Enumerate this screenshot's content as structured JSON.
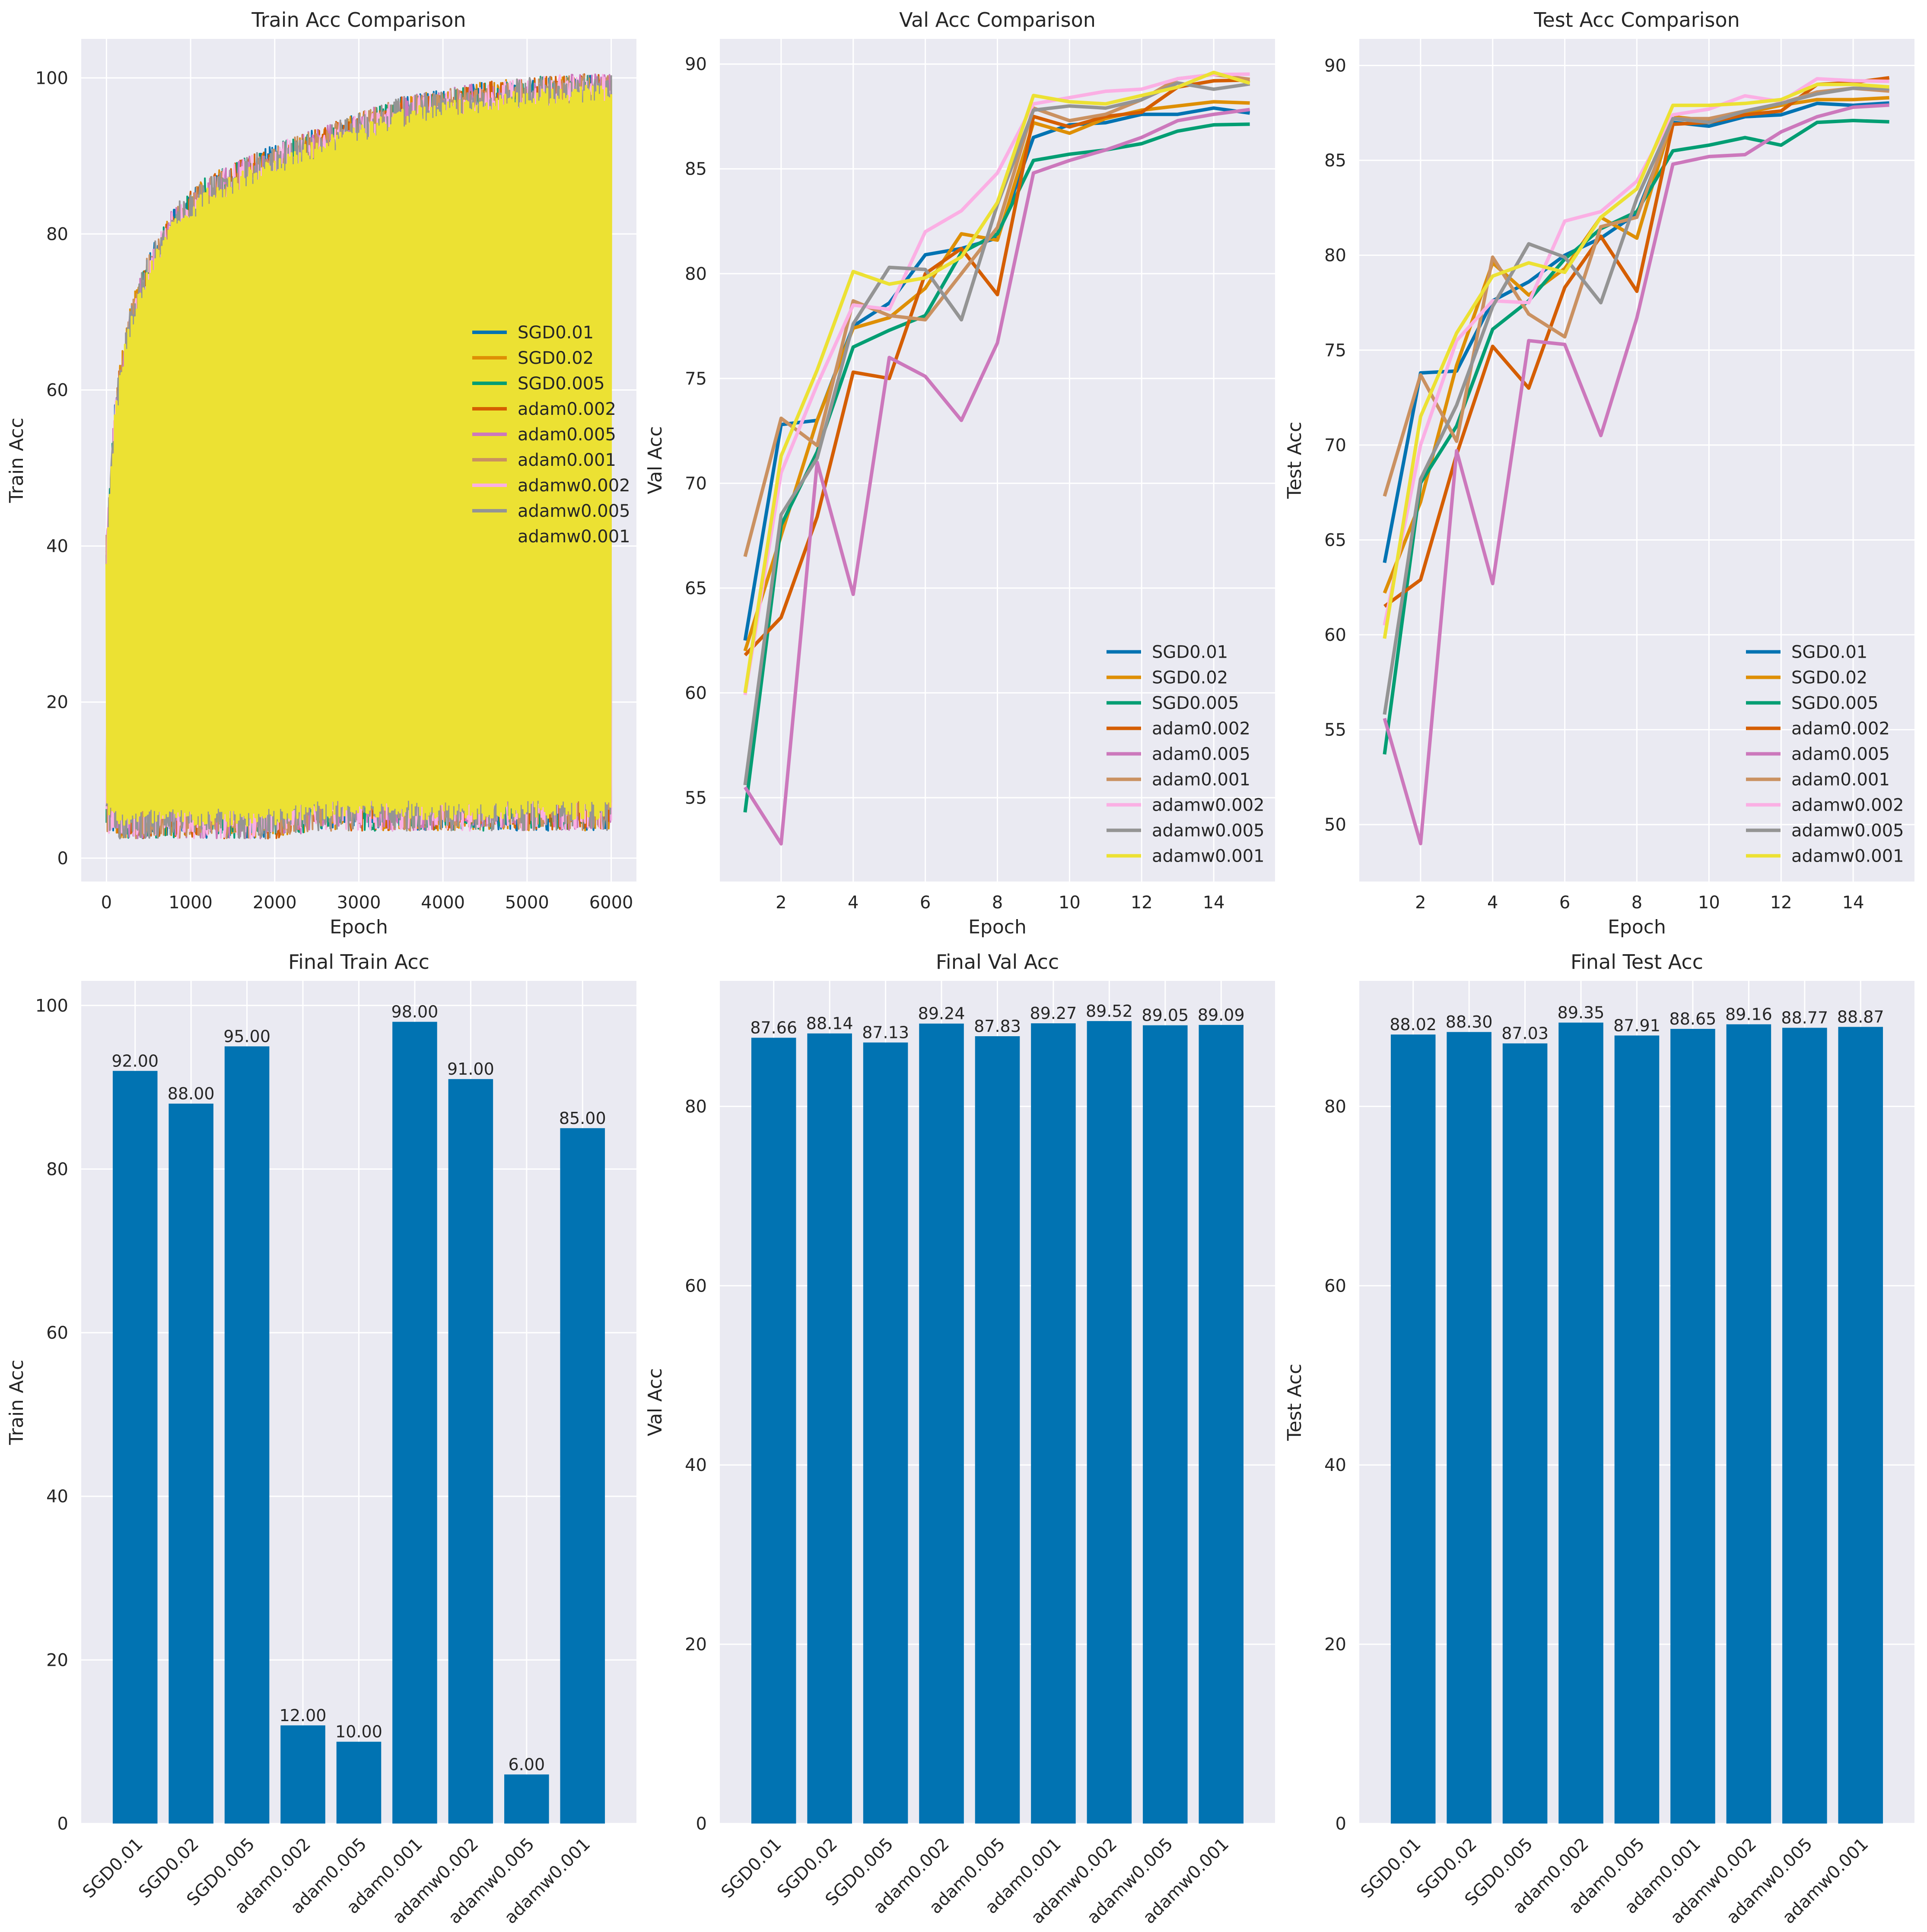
{
  "colors": {
    "panel_bg": "#EAEAF2",
    "grid": "#FFFFFF",
    "bar": "#0173B2",
    "text": "#262626",
    "series": {
      "SGD0.01": "#0173B2",
      "SGD0.02": "#DE8F05",
      "SGD0.005": "#029E73",
      "adam0.002": "#D55E00",
      "adam0.005": "#CC78BC",
      "adam0.001": "#CA9161",
      "adamw0.002": "#FBAFE4",
      "adamw0.005": "#949494",
      "adamw0.001": "#ECE133"
    }
  },
  "series_names": [
    "SGD0.01",
    "SGD0.02",
    "SGD0.005",
    "adam0.002",
    "adam0.005",
    "adam0.001",
    "adamw0.002",
    "adamw0.005",
    "adamw0.001"
  ],
  "chart_data": [
    {
      "type": "line",
      "title": "Train Acc Comparison",
      "xlabel": "Epoch",
      "ylabel": "Train Acc",
      "xlim": [
        -300,
        6300
      ],
      "ylim": [
        -3,
        105
      ],
      "xticks": [
        0,
        1000,
        2000,
        3000,
        4000,
        5000,
        6000
      ],
      "yticks": [
        0,
        20,
        40,
        60,
        80,
        100
      ],
      "grid": true,
      "legend": "center-right",
      "note_render": "per-batch accuracy; series overlap densely between the lower and upper envelopes",
      "envelope": {
        "x": [
          0,
          100,
          200,
          300,
          500,
          800,
          1200,
          1600,
          2000,
          2500,
          3000,
          3500,
          4000,
          4500,
          5000,
          5500,
          6000
        ],
        "upper": [
          40,
          57,
          65,
          70,
          76,
          82,
          86,
          88,
          90,
          92,
          94,
          96,
          97,
          98,
          98.5,
          99,
          99
        ],
        "lower": [
          5,
          4,
          4,
          4,
          4,
          4,
          4,
          4,
          4,
          5,
          5,
          5,
          5,
          5,
          5,
          5,
          5
        ]
      },
      "series": [
        {
          "name": "SGD0.01",
          "final": 92
        },
        {
          "name": "SGD0.02",
          "final": 88
        },
        {
          "name": "SGD0.005",
          "final": 95
        },
        {
          "name": "adam0.002",
          "final": 12
        },
        {
          "name": "adam0.005",
          "final": 10
        },
        {
          "name": "adam0.001",
          "final": 98
        },
        {
          "name": "adamw0.002",
          "final": 91
        },
        {
          "name": "adamw0.005",
          "final": 6
        },
        {
          "name": "adamw0.001",
          "final": 85
        }
      ]
    },
    {
      "type": "line",
      "title": "Val Acc Comparison",
      "xlabel": "Epoch",
      "ylabel": "Val Acc",
      "xlim": [
        0.3,
        15.7
      ],
      "ylim": [
        51,
        91.2
      ],
      "xticks": [
        2,
        4,
        6,
        8,
        10,
        12,
        14
      ],
      "yticks": [
        55,
        60,
        65,
        70,
        75,
        80,
        85,
        90
      ],
      "grid": true,
      "legend": "lower-right",
      "x": [
        1,
        2,
        3,
        4,
        5,
        6,
        7,
        8,
        9,
        10,
        11,
        12,
        13,
        14,
        15
      ],
      "series": [
        {
          "name": "SGD0.01",
          "values": [
            62.5,
            72.8,
            73.0,
            77.5,
            78.6,
            80.9,
            81.2,
            81.7,
            86.5,
            87.1,
            87.2,
            87.6,
            87.6,
            87.9,
            87.66
          ]
        },
        {
          "name": "SGD0.02",
          "values": [
            62.0,
            67.5,
            73.0,
            77.4,
            77.9,
            79.3,
            81.9,
            81.6,
            87.2,
            86.7,
            87.4,
            87.8,
            88.0,
            88.2,
            88.14
          ]
        },
        {
          "name": "SGD0.005",
          "values": [
            54.3,
            68.0,
            71.5,
            76.5,
            77.3,
            78.0,
            81.0,
            81.9,
            85.4,
            85.7,
            85.9,
            86.2,
            86.8,
            87.1,
            87.13
          ]
        },
        {
          "name": "adam0.002",
          "values": [
            61.8,
            63.6,
            68.4,
            75.3,
            75.0,
            80.0,
            81.2,
            79.0,
            87.5,
            87.0,
            87.5,
            87.7,
            88.9,
            89.2,
            89.24
          ]
        },
        {
          "name": "adam0.005",
          "values": [
            55.5,
            52.8,
            71.0,
            64.7,
            76.0,
            75.1,
            73.0,
            76.7,
            84.8,
            85.4,
            85.9,
            86.5,
            87.3,
            87.6,
            87.83
          ]
        },
        {
          "name": "adam0.001",
          "values": [
            66.5,
            73.1,
            71.8,
            78.7,
            78.0,
            77.8,
            80.0,
            82.2,
            87.9,
            87.3,
            87.6,
            88.3,
            89.3,
            89.5,
            89.27
          ]
        },
        {
          "name": "adamw0.002",
          "values": [
            59.9,
            70.5,
            74.7,
            78.5,
            78.3,
            82.0,
            83.0,
            84.8,
            88.1,
            88.4,
            88.7,
            88.8,
            89.3,
            89.5,
            89.52
          ]
        },
        {
          "name": "adamw0.005",
          "values": [
            55.6,
            68.5,
            71.2,
            77.6,
            80.3,
            80.2,
            77.8,
            83.3,
            87.8,
            88.0,
            87.9,
            88.3,
            89.1,
            88.8,
            89.05
          ]
        },
        {
          "name": "adamw0.001",
          "values": [
            60.0,
            71.3,
            75.4,
            80.1,
            79.5,
            79.8,
            80.8,
            83.4,
            88.5,
            88.2,
            88.1,
            88.5,
            88.9,
            89.6,
            89.09
          ]
        }
      ]
    },
    {
      "type": "line",
      "title": "Test Acc Comparison",
      "xlabel": "Epoch",
      "ylabel": "Test Acc",
      "xlim": [
        0.3,
        15.7
      ],
      "ylim": [
        47,
        91.4
      ],
      "xticks": [
        2,
        4,
        6,
        8,
        10,
        12,
        14
      ],
      "yticks": [
        50,
        55,
        60,
        65,
        70,
        75,
        80,
        85,
        90
      ],
      "grid": true,
      "legend": "lower-right",
      "x": [
        1,
        2,
        3,
        4,
        5,
        6,
        7,
        8,
        9,
        10,
        11,
        12,
        13,
        14,
        15
      ],
      "series": [
        {
          "name": "SGD0.01",
          "values": [
            63.8,
            73.8,
            73.9,
            77.6,
            78.6,
            80.0,
            80.9,
            82.2,
            87.0,
            86.8,
            87.3,
            87.4,
            88.0,
            87.9,
            88.02
          ]
        },
        {
          "name": "SGD0.02",
          "values": [
            62.2,
            67.0,
            74.2,
            79.6,
            77.9,
            79.3,
            82.0,
            80.9,
            87.3,
            87.1,
            87.5,
            87.9,
            88.2,
            88.2,
            88.3
          ]
        },
        {
          "name": "SGD0.005",
          "values": [
            53.7,
            68.0,
            71.0,
            76.1,
            77.6,
            79.8,
            81.4,
            82.3,
            85.5,
            85.8,
            86.2,
            85.8,
            87.0,
            87.1,
            87.03
          ]
        },
        {
          "name": "adam0.002",
          "values": [
            61.5,
            62.9,
            69.5,
            75.2,
            73.0,
            78.3,
            81.0,
            78.1,
            86.9,
            87.0,
            87.4,
            87.6,
            89.0,
            89.1,
            89.35
          ]
        },
        {
          "name": "adam0.005",
          "values": [
            55.6,
            49.0,
            69.7,
            62.7,
            75.5,
            75.3,
            70.5,
            76.7,
            84.8,
            85.2,
            85.3,
            86.5,
            87.3,
            87.8,
            87.91
          ]
        },
        {
          "name": "adam0.001",
          "values": [
            67.3,
            73.7,
            70.2,
            79.9,
            76.9,
            75.7,
            81.5,
            82.0,
            87.2,
            87.2,
            87.6,
            88.0,
            88.6,
            88.8,
            88.65
          ]
        },
        {
          "name": "adamw0.002",
          "values": [
            60.5,
            70.0,
            75.5,
            77.6,
            77.5,
            81.8,
            82.3,
            83.9,
            87.4,
            87.7,
            88.4,
            88.1,
            89.3,
            89.2,
            89.16
          ]
        },
        {
          "name": "adamw0.005",
          "values": [
            55.8,
            68.2,
            72.1,
            77.3,
            80.6,
            79.9,
            77.5,
            83.0,
            87.2,
            87.0,
            87.6,
            88.0,
            88.5,
            88.8,
            88.77
          ]
        },
        {
          "name": "adamw0.001",
          "values": [
            59.8,
            71.5,
            75.9,
            78.9,
            79.6,
            79.1,
            82.0,
            83.5,
            87.9,
            87.9,
            88.0,
            88.2,
            89.0,
            89.0,
            88.87
          ]
        }
      ]
    },
    {
      "type": "bar",
      "title": "Final Train Acc",
      "xlabel": "",
      "ylabel": "Train Acc",
      "ylim": [
        0,
        103
      ],
      "yticks": [
        0,
        20,
        40,
        60,
        80,
        100
      ],
      "categories": [
        "SGD0.01",
        "SGD0.02",
        "SGD0.005",
        "adam0.002",
        "adam0.005",
        "adam0.001",
        "adamw0.002",
        "adamw0.005",
        "adamw0.001"
      ],
      "values": [
        92,
        88,
        95,
        12,
        10,
        98,
        91,
        6,
        85
      ],
      "labels": [
        "92.00",
        "88.00",
        "95.00",
        "12.00",
        "10.00",
        "98.00",
        "91.00",
        "6.00",
        "85.00"
      ]
    },
    {
      "type": "bar",
      "title": "Final Val Acc",
      "xlabel": "",
      "ylabel": "Val Acc",
      "ylim": [
        0,
        94
      ],
      "yticks": [
        0,
        20,
        40,
        60,
        80
      ],
      "categories": [
        "SGD0.01",
        "SGD0.02",
        "SGD0.005",
        "adam0.002",
        "adam0.005",
        "adam0.001",
        "adamw0.002",
        "adamw0.005",
        "adamw0.001"
      ],
      "values": [
        87.66,
        88.14,
        87.13,
        89.24,
        87.83,
        89.27,
        89.52,
        89.05,
        89.09
      ],
      "labels": [
        "87.66",
        "88.14",
        "87.13",
        "89.24",
        "87.83",
        "89.27",
        "89.52",
        "89.05",
        "89.09"
      ]
    },
    {
      "type": "bar",
      "title": "Final Test Acc",
      "xlabel": "",
      "ylabel": "Test Acc",
      "ylim": [
        0,
        94
      ],
      "yticks": [
        0,
        20,
        40,
        60,
        80
      ],
      "categories": [
        "SGD0.01",
        "SGD0.02",
        "SGD0.005",
        "adam0.002",
        "adam0.005",
        "adam0.001",
        "adamw0.002",
        "adamw0.005",
        "adamw0.001"
      ],
      "values": [
        88.02,
        88.3,
        87.03,
        89.35,
        87.91,
        88.65,
        89.16,
        88.77,
        88.87
      ],
      "labels": [
        "88.02",
        "88.30",
        "87.03",
        "89.35",
        "87.91",
        "88.65",
        "89.16",
        "88.77",
        "88.87"
      ]
    }
  ]
}
